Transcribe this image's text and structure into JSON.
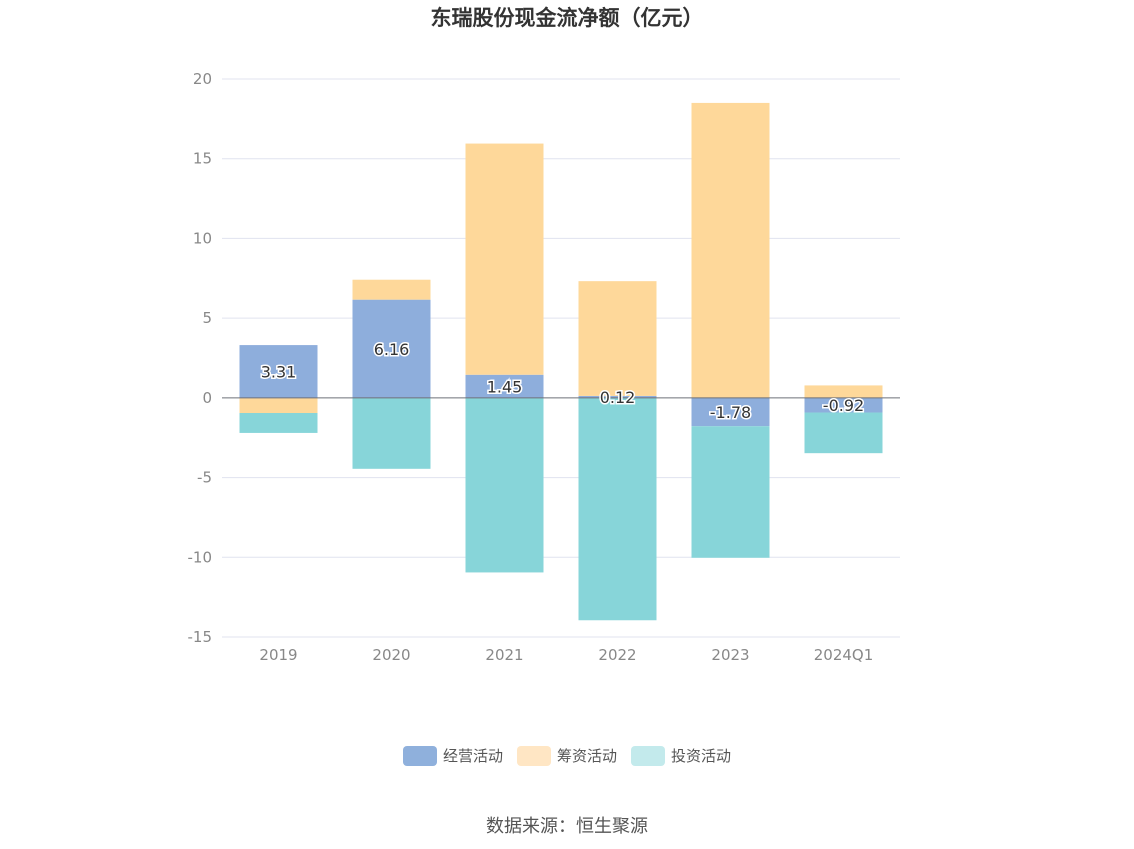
{
  "chart_data": {
    "type": "bar",
    "stacked": true,
    "title": "东瑞股份现金流净额（亿元）",
    "categories": [
      "2019",
      "2020",
      "2021",
      "2022",
      "2023",
      "2024Q1"
    ],
    "ylim": [
      -15,
      20
    ],
    "yticks": [
      20,
      15,
      10,
      5,
      0,
      -5,
      -10,
      -15
    ],
    "grid": true,
    "legend_position": "bottom",
    "series": [
      {
        "name": "经营活动",
        "color": "#8eaedc",
        "values": [
          3.31,
          6.16,
          1.45,
          0.12,
          -1.78,
          -0.92
        ],
        "labels": [
          "3.31",
          "6.16",
          "1.45",
          "0.12",
          "-1.78",
          "-0.92"
        ]
      },
      {
        "name": "筹资活动",
        "color": "#fed89a",
        "values": [
          -0.95,
          1.25,
          14.5,
          7.2,
          18.5,
          0.78
        ]
      },
      {
        "name": "投资活动",
        "color": "#87d5d9",
        "values": [
          -1.25,
          -4.45,
          -10.95,
          -13.95,
          -8.25,
          -2.55
        ]
      }
    ]
  },
  "legend_colors": {
    "经营活动": "#8fb0dc",
    "筹资活动": "#ffe6c4",
    "投资活动": "#c3eaec"
  },
  "source": "数据来源：恒生聚源"
}
